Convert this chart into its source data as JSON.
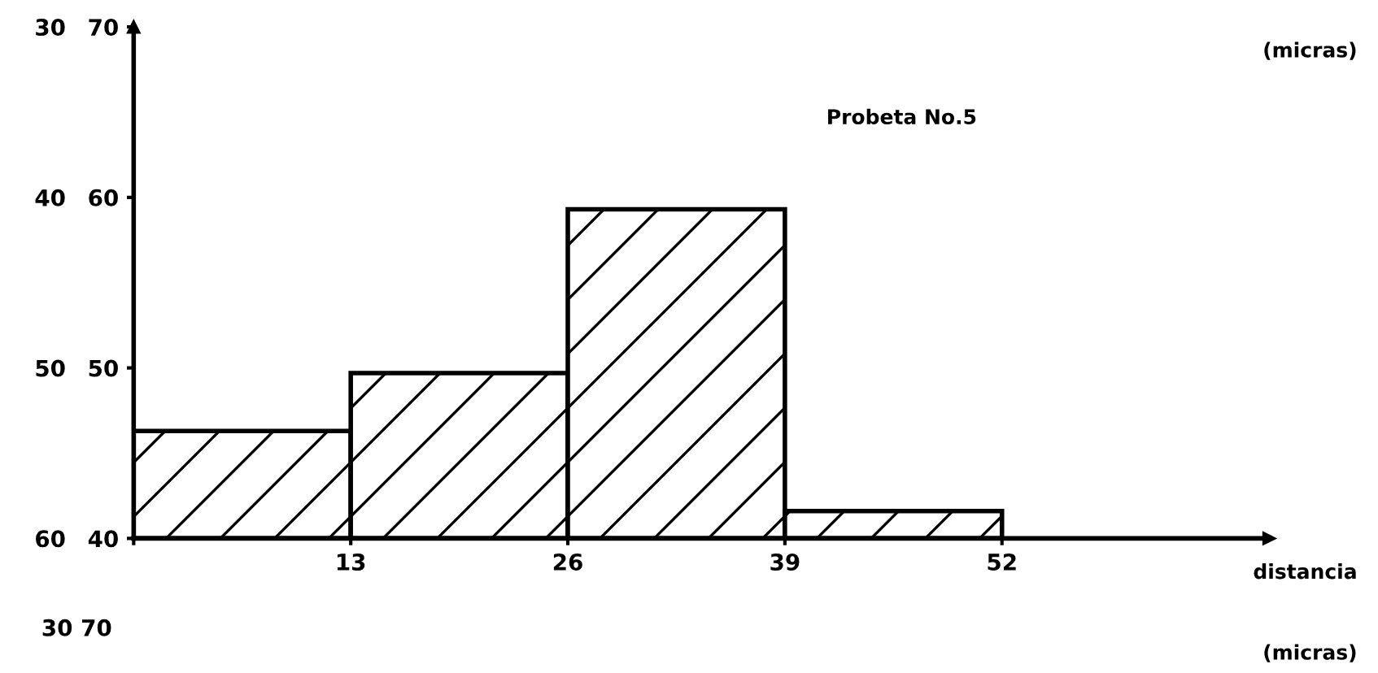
{
  "chart_data": {
    "type": "histogram",
    "title": "Probeta No.5",
    "xlabel": "distancia",
    "ylabel": "(micras)",
    "bins": [
      0,
      13,
      26,
      39,
      52
    ],
    "values": [
      46.3,
      49.7,
      59.3,
      41.6
    ],
    "color": "#000000",
    "xlim": [
      0,
      68
    ],
    "xticks": [
      {
        "value": 0,
        "label": null
      },
      13,
      26,
      39,
      52
    ],
    "ylim": [
      40,
      70
    ],
    "yticks": [
      40,
      50,
      60,
      70
    ],
    "y2lim": [
      60,
      30
    ],
    "y2ticks": [
      30,
      40,
      50,
      60
    ],
    "grid": false,
    "annotations": [
      "30 70",
      "(micras)"
    ]
  }
}
